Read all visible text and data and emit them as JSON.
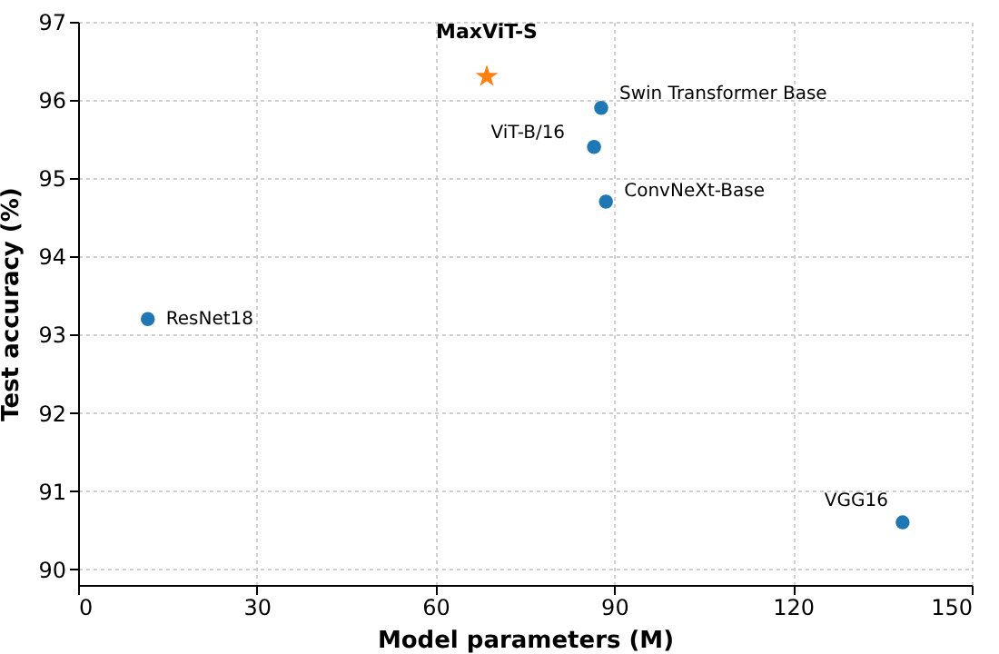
{
  "chart_data": {
    "type": "scatter",
    "xlabel": "Model parameters (M)",
    "ylabel": "Test accuracy (%)",
    "xlim": [
      0,
      150
    ],
    "xticks": [
      0,
      30,
      60,
      90,
      120,
      150
    ],
    "ylim": [
      89.8,
      97
    ],
    "yticks": [
      90,
      91,
      92,
      93,
      94,
      95,
      96,
      97
    ],
    "grid": true,
    "series": [
      {
        "color": "#1f77b4",
        "marker": "circle",
        "x": [
          87.8,
          86.6,
          88.6,
          11.7,
          138.4
        ],
        "values": [
          95.9,
          95.4,
          94.7,
          93.2,
          90.6
        ]
      },
      {
        "color": "#ff7f0e",
        "marker": "star",
        "x": [
          68.6
        ],
        "values": [
          96.3
        ]
      }
    ],
    "annotations": [
      {
        "text": "MaxViT-S",
        "x": 68.6,
        "y": 96.3
      },
      {
        "text": "Swin Transformer Base",
        "x": 87.8,
        "y": 95.9
      },
      {
        "text": "ViT-B/16",
        "x": 86.6,
        "y": 95.4
      },
      {
        "text": "ConvNeXt-Base",
        "x": 88.6,
        "y": 94.7
      },
      {
        "text": "ResNet18",
        "x": 11.7,
        "y": 93.2
      },
      {
        "text": "VGG16",
        "x": 138.4,
        "y": 90.6
      }
    ]
  }
}
